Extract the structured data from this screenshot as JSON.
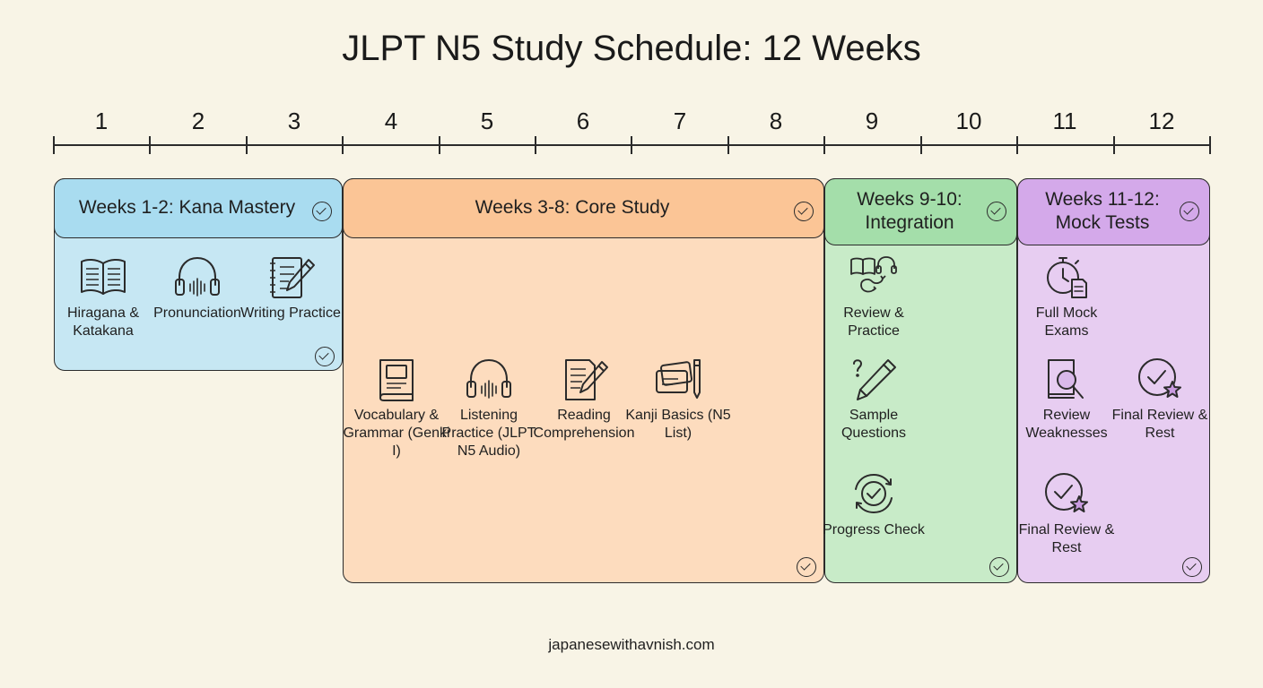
{
  "title": "JLPT N5 Study Schedule: 12 Weeks",
  "weeks": [
    "1",
    "2",
    "3",
    "4",
    "5",
    "6",
    "7",
    "8",
    "9",
    "10",
    "11",
    "12"
  ],
  "phases": [
    {
      "title": "Weeks 1-2: Kana Mastery",
      "color": "#c6e7f3",
      "header_color": "#a9dcf0",
      "items": [
        {
          "label": "Hiragana & Katakana",
          "icon": "open-book-icon"
        },
        {
          "label": "Pronunciation",
          "icon": "headphones-icon"
        },
        {
          "label": "Writing Practice",
          "icon": "notepad-pencil-icon"
        }
      ]
    },
    {
      "title": "Weeks 3-8: Core Study",
      "color": "#fddcbe",
      "header_color": "#fbc596",
      "items": [
        {
          "label": "Vocabulary & Grammar (Genki I)",
          "icon": "textbook-icon"
        },
        {
          "label": "Listening Practice (JLPT N5 Audio)",
          "icon": "headphones-icon"
        },
        {
          "label": "Reading Comprehension",
          "icon": "document-pencil-icon"
        },
        {
          "label": "Kanji Basics (N5 List)",
          "icon": "flashcards-icon"
        }
      ]
    },
    {
      "title": "Weeks 9-10: Integration",
      "color": "#c8ebc8",
      "header_color": "#a4deaa",
      "items": [
        {
          "label": "Review & Practice",
          "icon": "book-headphones-cycle-icon"
        },
        {
          "label": "Sample Questions",
          "icon": "question-pencil-icon"
        },
        {
          "label": "Progress Check",
          "icon": "progress-check-icon"
        }
      ]
    },
    {
      "title": "Weeks 11-12: Mock Tests",
      "color": "#e7cdf1",
      "header_color": "#d4a9ea",
      "items": [
        {
          "label": "Full Mock Exams",
          "icon": "stopwatch-document-icon"
        },
        {
          "label": "Review Weaknesses",
          "icon": "magnifier-book-icon"
        },
        {
          "label": "Final Review & Rest",
          "icon": "check-star-icon"
        },
        {
          "label": "Final Review & Rest",
          "icon": "check-star-icon"
        }
      ]
    }
  ],
  "footer": "japanesewithavnish.com"
}
